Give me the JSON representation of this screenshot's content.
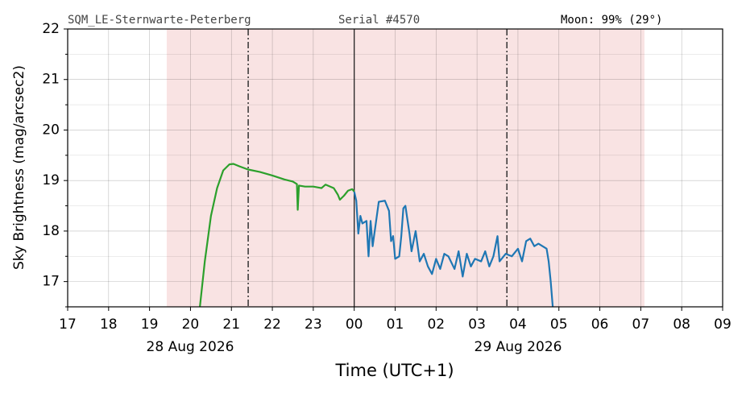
{
  "chart_data": {
    "type": "line",
    "header": {
      "station": "SQM_LE-Sternwarte-Peterberg",
      "serial": "Serial #4570",
      "moon": "Moon: 99% (29°)"
    },
    "xlabel": "Time (UTC+1)",
    "ylabel": "Sky Brightness (mag/arcsec2)",
    "date_labels": [
      "28 Aug 2026",
      "29 Aug 2026"
    ],
    "xlim": [
      17,
      33
    ],
    "ylim": [
      16.5,
      22
    ],
    "xticks": [
      17,
      18,
      19,
      20,
      21,
      22,
      23,
      {
        "value": 24,
        "label": "00"
      },
      {
        "value": 25,
        "label": "01"
      },
      {
        "value": 26,
        "label": "02"
      },
      {
        "value": 27,
        "label": "03"
      },
      {
        "value": 28,
        "label": "04"
      },
      {
        "value": 29,
        "label": "05"
      },
      {
        "value": 30,
        "label": "06"
      },
      {
        "value": 31,
        "label": "07"
      },
      {
        "value": 32,
        "label": "08"
      },
      {
        "value": 33,
        "label": "09"
      }
    ],
    "yticks": [
      17,
      18,
      19,
      20,
      21,
      22
    ],
    "yminorticks": [
      16.5,
      17.5,
      18.5,
      19.5,
      20.5,
      21.5
    ],
    "grid": true,
    "shaded_span": [
      19.42,
      31.09
    ],
    "shade_color": "#f9e3e3",
    "dashed_vlines": [
      21.41,
      27.73
    ],
    "solid_vline": 24,
    "series": [
      {
        "color": "#2ca02c",
        "x": [
          20.23,
          20.35,
          20.5,
          20.65,
          20.8,
          20.95,
          21.05,
          21.2,
          21.4,
          21.7,
          22.0,
          22.3,
          22.5,
          22.6,
          22.62,
          22.65,
          22.8,
          23.0,
          23.2,
          23.3,
          23.5,
          23.6,
          23.65,
          23.75,
          23.85,
          23.95,
          24.0
        ],
        "values": [
          16.5,
          17.4,
          18.3,
          18.85,
          19.2,
          19.32,
          19.33,
          19.28,
          19.22,
          19.17,
          19.1,
          19.02,
          18.98,
          18.93,
          18.42,
          18.9,
          18.88,
          18.88,
          18.85,
          18.92,
          18.85,
          18.72,
          18.62,
          18.7,
          18.8,
          18.83,
          18.78
        ]
      },
      {
        "color": "#1f77b4",
        "x": [
          24.0,
          24.05,
          24.1,
          24.15,
          24.2,
          24.3,
          24.35,
          24.4,
          24.45,
          24.6,
          24.75,
          24.85,
          24.9,
          24.95,
          25.0,
          25.1,
          25.15,
          25.2,
          25.25,
          25.35,
          25.4,
          25.5,
          25.6,
          25.7,
          25.8,
          25.9,
          26.0,
          26.1,
          26.2,
          26.3,
          26.45,
          26.55,
          26.65,
          26.75,
          26.85,
          26.95,
          27.1,
          27.2,
          27.3,
          27.4,
          27.5,
          27.55,
          27.7,
          27.85,
          28.0,
          28.1,
          28.2,
          28.3,
          28.4,
          28.5,
          28.6,
          28.7,
          28.75,
          28.8,
          28.85
        ],
        "values": [
          18.78,
          18.6,
          17.95,
          18.3,
          18.15,
          18.2,
          17.5,
          18.2,
          17.7,
          18.58,
          18.6,
          18.4,
          17.8,
          17.9,
          17.45,
          17.5,
          17.9,
          18.45,
          18.5,
          17.95,
          17.6,
          18.0,
          17.4,
          17.55,
          17.3,
          17.15,
          17.45,
          17.25,
          17.55,
          17.5,
          17.25,
          17.6,
          17.1,
          17.55,
          17.3,
          17.45,
          17.4,
          17.6,
          17.3,
          17.5,
          17.9,
          17.4,
          17.55,
          17.5,
          17.65,
          17.4,
          17.8,
          17.85,
          17.7,
          17.75,
          17.7,
          17.65,
          17.4,
          17.0,
          16.5
        ]
      }
    ]
  }
}
